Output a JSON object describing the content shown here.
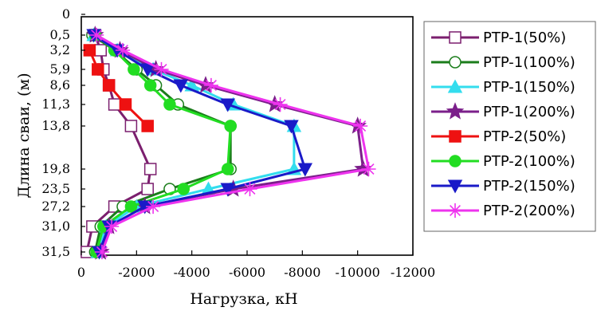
{
  "chart_data": {
    "type": "line",
    "xlabel": "Нагрузка, кН",
    "ylabel": "Длина сваи, (м)",
    "x_ticks": [
      0,
      -2000,
      -4000,
      -6000,
      -8000,
      -10000,
      -12000
    ],
    "x_tick_labels": [
      "0",
      "-2000",
      "-4000",
      "-6000",
      "-8000",
      "-10000",
      "-12000"
    ],
    "y_tick_labels": [
      "0",
      "0,5",
      "3,2",
      "5,9",
      "8,6",
      "11,3",
      "13,8",
      "19,8",
      "23,5",
      "27,2",
      "31,0",
      "31,5"
    ],
    "xlim": [
      0,
      -12000
    ],
    "ylim": [
      0,
      31.5
    ],
    "legend_position": "right",
    "series": [
      {
        "name": "PTP-1(50%)",
        "color": "#7B1F6E",
        "marker": "open-square",
        "x": [
          -500,
          -700,
          -800,
          -1000,
          -1200,
          -1800,
          -2500,
          -2400,
          -1200,
          -400,
          -200
        ],
        "y": [
          0.5,
          3.2,
          5.9,
          8.6,
          11.3,
          13.8,
          19.8,
          23.5,
          27.2,
          31.0,
          31.5
        ]
      },
      {
        "name": "PTP-1(100%)",
        "color": "#1B7D1B",
        "marker": "open-circle",
        "x": [
          -400,
          -1200,
          -2000,
          -2700,
          -3500,
          -5400,
          -5400,
          -3200,
          -1500,
          -700,
          -500
        ],
        "y": [
          0.5,
          3.2,
          5.9,
          8.6,
          11.3,
          13.8,
          19.8,
          23.5,
          27.2,
          31.0,
          31.5
        ]
      },
      {
        "name": "PTP-1(150%)",
        "color": "#33DDEE",
        "marker": "filled-triangle",
        "x": [
          -450,
          -1300,
          -2600,
          -4000,
          -5500,
          -7700,
          -7700,
          -4600,
          -2000,
          -900,
          -600
        ],
        "y": [
          0.5,
          3.2,
          5.9,
          8.6,
          11.3,
          13.8,
          19.8,
          23.5,
          27.2,
          31.0,
          31.5
        ]
      },
      {
        "name": "PTP-1(200%)",
        "color": "#7B1F8A",
        "marker": "filled-star",
        "x": [
          -500,
          -1400,
          -2700,
          -4500,
          -7000,
          -10000,
          -10200,
          -5500,
          -2300,
          -1000,
          -700
        ],
        "y": [
          0.5,
          3.2,
          5.9,
          8.6,
          11.3,
          13.8,
          19.8,
          23.5,
          27.2,
          31.0,
          31.5
        ]
      },
      {
        "name": "PTP-2(50%)",
        "color": "#EE1111",
        "marker": "filled-square",
        "x": [
          -300,
          -600,
          -1000,
          -1600,
          -2400
        ],
        "y": [
          3.2,
          5.9,
          8.6,
          11.3,
          13.8
        ]
      },
      {
        "name": "PTP-2(100%)",
        "color": "#22DD22",
        "marker": "filled-circle",
        "x": [
          -500,
          -1200,
          -1900,
          -2500,
          -3200,
          -5400,
          -5300,
          -3700,
          -1800,
          -800,
          -550
        ],
        "y": [
          0.5,
          3.2,
          5.9,
          8.6,
          11.3,
          13.8,
          19.8,
          23.5,
          27.2,
          31.0,
          31.5
        ]
      },
      {
        "name": "PTP-2(150%)",
        "color": "#1A1AC8",
        "marker": "filled-triangle-down",
        "x": [
          -450,
          -1300,
          -2400,
          -3600,
          -5300,
          -7600,
          -8100,
          -5300,
          -2300,
          -1000,
          -650
        ],
        "y": [
          0.5,
          3.2,
          5.9,
          8.6,
          11.3,
          13.8,
          19.8,
          23.5,
          27.2,
          31.0,
          31.5
        ]
      },
      {
        "name": "PTP-2(200%)",
        "color": "#EE33EE",
        "marker": "asterisk",
        "x": [
          -550,
          -1500,
          -2900,
          -4700,
          -7200,
          -10100,
          -10400,
          -6100,
          -2600,
          -1100,
          -750
        ],
        "y": [
          0.5,
          3.2,
          5.9,
          8.6,
          11.3,
          13.8,
          19.8,
          23.5,
          27.2,
          31.0,
          31.5
        ]
      }
    ]
  }
}
